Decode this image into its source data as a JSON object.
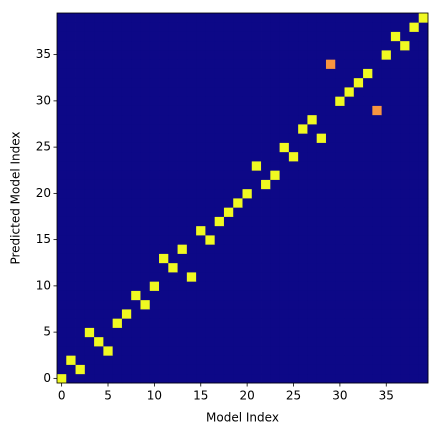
{
  "chart_data": {
    "type": "heatmap",
    "xlabel": "Model Index",
    "ylabel": "Predicted Model Index",
    "colormap": "plasma",
    "zlim": [
      0,
      1
    ],
    "xlim": [
      -0.5,
      39.5
    ],
    "ylim": [
      -0.5,
      39.5
    ],
    "xticks": [
      0,
      5,
      10,
      15,
      20,
      25,
      30,
      35
    ],
    "yticks": [
      0,
      5,
      10,
      15,
      20,
      25,
      30,
      35
    ],
    "z": [
      [
        1,
        0,
        0,
        0,
        0,
        0,
        0,
        0,
        0,
        0,
        0,
        0,
        0,
        0,
        0,
        0,
        0,
        0,
        0,
        0,
        0,
        0,
        0,
        0,
        0,
        0,
        0,
        0,
        0,
        0,
        0,
        0,
        0,
        0,
        0,
        0,
        0,
        0,
        0,
        0
      ],
      [
        0,
        0,
        1,
        0,
        0,
        0,
        0,
        0,
        0,
        0,
        0,
        0,
        0,
        0,
        0,
        0,
        0,
        0,
        0,
        0,
        0,
        0,
        0,
        0,
        0,
        0,
        0,
        0,
        0,
        0,
        0,
        0,
        0,
        0,
        0,
        0,
        0,
        0,
        0,
        0
      ],
      [
        0,
        1,
        0,
        0,
        0,
        0,
        0,
        0,
        0,
        0,
        0,
        0,
        0,
        0,
        0,
        0,
        0,
        0,
        0,
        0,
        0,
        0,
        0,
        0,
        0,
        0,
        0,
        0,
        0,
        0,
        0,
        0,
        0,
        0,
        0,
        0,
        0,
        0,
        0,
        0
      ],
      [
        0,
        0,
        0,
        0,
        0,
        1,
        0,
        0,
        0,
        0,
        0,
        0,
        0,
        0,
        0,
        0,
        0,
        0,
        0,
        0,
        0,
        0,
        0,
        0,
        0,
        0,
        0,
        0,
        0,
        0,
        0,
        0,
        0,
        0,
        0,
        0,
        0,
        0,
        0,
        0
      ],
      [
        0,
        0,
        0,
        0,
        1,
        0,
        0,
        0,
        0,
        0,
        0,
        0,
        0,
        0,
        0,
        0,
        0,
        0,
        0,
        0,
        0,
        0,
        0,
        0,
        0,
        0,
        0,
        0,
        0,
        0,
        0,
        0,
        0,
        0,
        0,
        0,
        0,
        0,
        0,
        0
      ],
      [
        0,
        0,
        0,
        1,
        0,
        0,
        0,
        0,
        0,
        0,
        0,
        0,
        0,
        0,
        0,
        0,
        0,
        0,
        0,
        0,
        0,
        0,
        0,
        0,
        0,
        0,
        0,
        0,
        0,
        0,
        0,
        0,
        0,
        0,
        0,
        0,
        0,
        0,
        0,
        0
      ],
      [
        0,
        0,
        0,
        0,
        0,
        0,
        1,
        0,
        0,
        0,
        0,
        0,
        0,
        0,
        0,
        0,
        0,
        0,
        0,
        0,
        0,
        0,
        0,
        0,
        0,
        0,
        0,
        0,
        0,
        0,
        0,
        0,
        0,
        0,
        0,
        0,
        0,
        0,
        0,
        0
      ],
      [
        0,
        0,
        0,
        0,
        0,
        0,
        0,
        1,
        0,
        0,
        0,
        0,
        0,
        0,
        0,
        0,
        0,
        0,
        0,
        0,
        0,
        0,
        0,
        0,
        0,
        0,
        0,
        0,
        0,
        0,
        0,
        0,
        0,
        0,
        0,
        0,
        0,
        0,
        0,
        0
      ],
      [
        0,
        0,
        0,
        0,
        0,
        0,
        0,
        0,
        0,
        1,
        0,
        0,
        0,
        0,
        0,
        0,
        0,
        0,
        0,
        0,
        0,
        0,
        0,
        0,
        0,
        0,
        0,
        0,
        0,
        0,
        0,
        0,
        0,
        0,
        0,
        0,
        0,
        0,
        0,
        0
      ],
      [
        0,
        0,
        0,
        0,
        0,
        0,
        0,
        0,
        1,
        0,
        0,
        0,
        0,
        0,
        0,
        0,
        0,
        0,
        0,
        0,
        0,
        0,
        0,
        0,
        0,
        0,
        0,
        0,
        0,
        0,
        0,
        0,
        0,
        0,
        0,
        0,
        0,
        0,
        0,
        0
      ],
      [
        0,
        0,
        0,
        0,
        0,
        0,
        0,
        0,
        0,
        0,
        1,
        0,
        0,
        0,
        0,
        0,
        0,
        0,
        0,
        0,
        0,
        0,
        0,
        0,
        0,
        0,
        0,
        0,
        0,
        0,
        0,
        0,
        0,
        0,
        0,
        0,
        0,
        0,
        0,
        0
      ],
      [
        0,
        0,
        0,
        0,
        0,
        0,
        0,
        0,
        0,
        0,
        0,
        0,
        0,
        0,
        1,
        0,
        0,
        0,
        0,
        0,
        0,
        0,
        0,
        0,
        0,
        0,
        0,
        0,
        0,
        0,
        0,
        0,
        0,
        0,
        0,
        0,
        0,
        0,
        0,
        0
      ],
      [
        0,
        0,
        0,
        0,
        0,
        0,
        0,
        0,
        0,
        0,
        0,
        0,
        1,
        0,
        0,
        0,
        0,
        0,
        0,
        0,
        0,
        0,
        0,
        0,
        0,
        0,
        0,
        0,
        0,
        0,
        0,
        0,
        0,
        0,
        0,
        0,
        0,
        0,
        0,
        0
      ],
      [
        0,
        0,
        0,
        0,
        0,
        0,
        0,
        0,
        0,
        0,
        0,
        1,
        0,
        0,
        0,
        0,
        0,
        0,
        0,
        0,
        0,
        0,
        0,
        0,
        0,
        0,
        0,
        0,
        0,
        0,
        0,
        0,
        0,
        0,
        0,
        0,
        0,
        0,
        0,
        0
      ],
      [
        0,
        0,
        0,
        0,
        0,
        0,
        0,
        0,
        0,
        0,
        0,
        0,
        0,
        1,
        0,
        0,
        0,
        0,
        0,
        0,
        0,
        0,
        0,
        0,
        0,
        0,
        0,
        0,
        0,
        0,
        0,
        0,
        0,
        0,
        0,
        0,
        0,
        0,
        0,
        0
      ],
      [
        0,
        0,
        0,
        0,
        0,
        0,
        0,
        0,
        0,
        0,
        0,
        0,
        0,
        0,
        0,
        0,
        1,
        0,
        0,
        0,
        0,
        0,
        0,
        0,
        0,
        0,
        0,
        0,
        0,
        0,
        0,
        0,
        0,
        0,
        0,
        0,
        0,
        0,
        0,
        0
      ],
      [
        0,
        0,
        0,
        0,
        0,
        0,
        0,
        0,
        0,
        0,
        0,
        0,
        0,
        0,
        0,
        1,
        0,
        0,
        0,
        0,
        0,
        0,
        0,
        0,
        0,
        0,
        0,
        0,
        0,
        0,
        0,
        0,
        0,
        0,
        0,
        0,
        0,
        0,
        0,
        0
      ],
      [
        0,
        0,
        0,
        0,
        0,
        0,
        0,
        0,
        0,
        0,
        0,
        0,
        0,
        0,
        0,
        0,
        0,
        1,
        0,
        0,
        0,
        0,
        0,
        0,
        0,
        0,
        0,
        0,
        0,
        0,
        0,
        0,
        0,
        0,
        0,
        0,
        0,
        0,
        0,
        0
      ],
      [
        0,
        0,
        0,
        0,
        0,
        0,
        0,
        0,
        0,
        0,
        0,
        0,
        0,
        0,
        0,
        0,
        0,
        0,
        1,
        0,
        0,
        0,
        0,
        0,
        0,
        0,
        0,
        0,
        0,
        0,
        0,
        0,
        0,
        0,
        0,
        0,
        0,
        0,
        0,
        0
      ],
      [
        0,
        0,
        0,
        0,
        0,
        0,
        0,
        0,
        0,
        0,
        0,
        0,
        0,
        0,
        0,
        0,
        0,
        0,
        0,
        1,
        0,
        0,
        0,
        0,
        0,
        0,
        0,
        0,
        0,
        0,
        0,
        0,
        0,
        0,
        0,
        0,
        0,
        0,
        0,
        0
      ],
      [
        0,
        0,
        0,
        0,
        0,
        0,
        0,
        0,
        0,
        0,
        0,
        0,
        0,
        0,
        0,
        0,
        0,
        0,
        0,
        0,
        1,
        0,
        0,
        0,
        0,
        0,
        0,
        0,
        0,
        0,
        0,
        0,
        0,
        0,
        0,
        0,
        0,
        0,
        0,
        0
      ],
      [
        0,
        0,
        0,
        0,
        0,
        0,
        0,
        0,
        0,
        0,
        0,
        0,
        0,
        0,
        0,
        0,
        0,
        0,
        0,
        0,
        0,
        0,
        1,
        0,
        0,
        0,
        0,
        0,
        0,
        0,
        0,
        0,
        0,
        0,
        0,
        0,
        0,
        0,
        0,
        0
      ],
      [
        0,
        0,
        0,
        0,
        0,
        0,
        0,
        0,
        0,
        0,
        0,
        0,
        0,
        0,
        0,
        0,
        0,
        0,
        0,
        0,
        0,
        0,
        0,
        1,
        0,
        0,
        0,
        0,
        0,
        0,
        0,
        0,
        0,
        0,
        0,
        0,
        0,
        0,
        0,
        0
      ],
      [
        0,
        0,
        0,
        0,
        0,
        0,
        0,
        0,
        0,
        0,
        0,
        0,
        0,
        0,
        0,
        0,
        0,
        0,
        0,
        0,
        0,
        1,
        0,
        0,
        0,
        0,
        0,
        0,
        0,
        0,
        0,
        0,
        0,
        0,
        0,
        0,
        0,
        0,
        0,
        0
      ],
      [
        0,
        0,
        0,
        0,
        0,
        0,
        0,
        0,
        0,
        0,
        0,
        0,
        0,
        0,
        0,
        0,
        0,
        0,
        0,
        0,
        0,
        0,
        0,
        0,
        0,
        1,
        0,
        0,
        0,
        0,
        0,
        0,
        0,
        0,
        0,
        0,
        0,
        0,
        0,
        0
      ],
      [
        0,
        0,
        0,
        0,
        0,
        0,
        0,
        0,
        0,
        0,
        0,
        0,
        0,
        0,
        0,
        0,
        0,
        0,
        0,
        0,
        0,
        0,
        0,
        0,
        1,
        0,
        0,
        0,
        0,
        0,
        0,
        0,
        0,
        0,
        0,
        0,
        0,
        0,
        0,
        0
      ],
      [
        0,
        0,
        0,
        0,
        0,
        0,
        0,
        0,
        0,
        0,
        0,
        0,
        0,
        0,
        0,
        0,
        0,
        0,
        0,
        0,
        0,
        0,
        0,
        0,
        0,
        0,
        0,
        0,
        1,
        0,
        0,
        0,
        0,
        0,
        0,
        0,
        0,
        0,
        0,
        0
      ],
      [
        0,
        0,
        0,
        0,
        0,
        0,
        0,
        0,
        0,
        0,
        0,
        0,
        0,
        0,
        0,
        0,
        0,
        0,
        0,
        0,
        0,
        0,
        0,
        0,
        0,
        0,
        1,
        0,
        0,
        0,
        0,
        0,
        0,
        0,
        0,
        0,
        0,
        0,
        0,
        0
      ],
      [
        0,
        0,
        0,
        0,
        0,
        0,
        0,
        0,
        0,
        0,
        0,
        0,
        0,
        0,
        0,
        0,
        0,
        0,
        0,
        0,
        0,
        0,
        0,
        0,
        0,
        0,
        0,
        1,
        0,
        0,
        0,
        0,
        0,
        0,
        0,
        0,
        0,
        0,
        0,
        0
      ],
      [
        0,
        0,
        0,
        0,
        0,
        0,
        0,
        0,
        0,
        0,
        0,
        0,
        0,
        0,
        0,
        0,
        0,
        0,
        0,
        0,
        0,
        0,
        0,
        0,
        0,
        0,
        0,
        0,
        0,
        0,
        0,
        0,
        0,
        0,
        0.75,
        0,
        0,
        0,
        0,
        0
      ],
      [
        0,
        0,
        0,
        0,
        0,
        0,
        0,
        0,
        0,
        0,
        0,
        0,
        0,
        0,
        0,
        0,
        0,
        0,
        0,
        0,
        0,
        0,
        0,
        0,
        0,
        0,
        0,
        0,
        0,
        0,
        1,
        0,
        0,
        0,
        0,
        0,
        0,
        0,
        0,
        0
      ],
      [
        0,
        0,
        0,
        0,
        0,
        0,
        0,
        0,
        0,
        0,
        0,
        0,
        0,
        0,
        0,
        0,
        0,
        0,
        0,
        0,
        0,
        0,
        0,
        0,
        0,
        0,
        0,
        0,
        0,
        0,
        0,
        1,
        0,
        0,
        0,
        0,
        0,
        0,
        0,
        0
      ],
      [
        0,
        0,
        0,
        0,
        0,
        0,
        0,
        0,
        0,
        0,
        0,
        0,
        0,
        0,
        0,
        0,
        0,
        0,
        0,
        0,
        0,
        0,
        0,
        0,
        0,
        0,
        0,
        0,
        0,
        0,
        0,
        0,
        1,
        0,
        0,
        0,
        0,
        0,
        0,
        0
      ],
      [
        0,
        0,
        0,
        0,
        0,
        0,
        0,
        0,
        0,
        0,
        0,
        0,
        0,
        0,
        0,
        0,
        0,
        0,
        0,
        0,
        0,
        0,
        0,
        0,
        0,
        0,
        0,
        0,
        0,
        0,
        0,
        0,
        0,
        1,
        0,
        0,
        0,
        0,
        0,
        0
      ],
      [
        0,
        0,
        0,
        0,
        0,
        0,
        0,
        0,
        0,
        0,
        0,
        0,
        0,
        0,
        0,
        0,
        0,
        0,
        0,
        0,
        0,
        0,
        0,
        0,
        0,
        0,
        0,
        0,
        0,
        0.75,
        0,
        0,
        0,
        0,
        0,
        0,
        0,
        0,
        0,
        0
      ],
      [
        0,
        0,
        0,
        0,
        0,
        0,
        0,
        0,
        0,
        0,
        0,
        0,
        0,
        0,
        0,
        0,
        0,
        0,
        0,
        0,
        0,
        0,
        0,
        0,
        0,
        0,
        0,
        0,
        0,
        0,
        0,
        0,
        0,
        0,
        0,
        1,
        0,
        0,
        0,
        0
      ],
      [
        0,
        0,
        0,
        0,
        0,
        0,
        0,
        0,
        0,
        0,
        0,
        0,
        0,
        0,
        0,
        0,
        0,
        0,
        0,
        0,
        0,
        0,
        0,
        0,
        0,
        0,
        0,
        0,
        0,
        0,
        0,
        0,
        0,
        0,
        0,
        0,
        0,
        1,
        0,
        0
      ],
      [
        0,
        0,
        0,
        0,
        0,
        0,
        0,
        0,
        0,
        0,
        0,
        0,
        0,
        0,
        0,
        0,
        0,
        0,
        0,
        0,
        0,
        0,
        0,
        0,
        0,
        0,
        0,
        0,
        0,
        0,
        0,
        0,
        0,
        0,
        0,
        0,
        1,
        0,
        0,
        0
      ],
      [
        0,
        0,
        0,
        0,
        0,
        0,
        0,
        0,
        0,
        0,
        0,
        0,
        0,
        0,
        0,
        0,
        0,
        0,
        0,
        0,
        0,
        0,
        0,
        0,
        0,
        0,
        0,
        0,
        0,
        0,
        0,
        0,
        0,
        0,
        0,
        0,
        0,
        0,
        1,
        0
      ],
      [
        0,
        0,
        0,
        0,
        0,
        0,
        0,
        0,
        0,
        0,
        0,
        0,
        0,
        0,
        0,
        0,
        0,
        0,
        0,
        0,
        0,
        0,
        0,
        0,
        0,
        0,
        0,
        0,
        0,
        0,
        0,
        0,
        0,
        0,
        0,
        0,
        0,
        0,
        0,
        1
      ]
    ]
  }
}
